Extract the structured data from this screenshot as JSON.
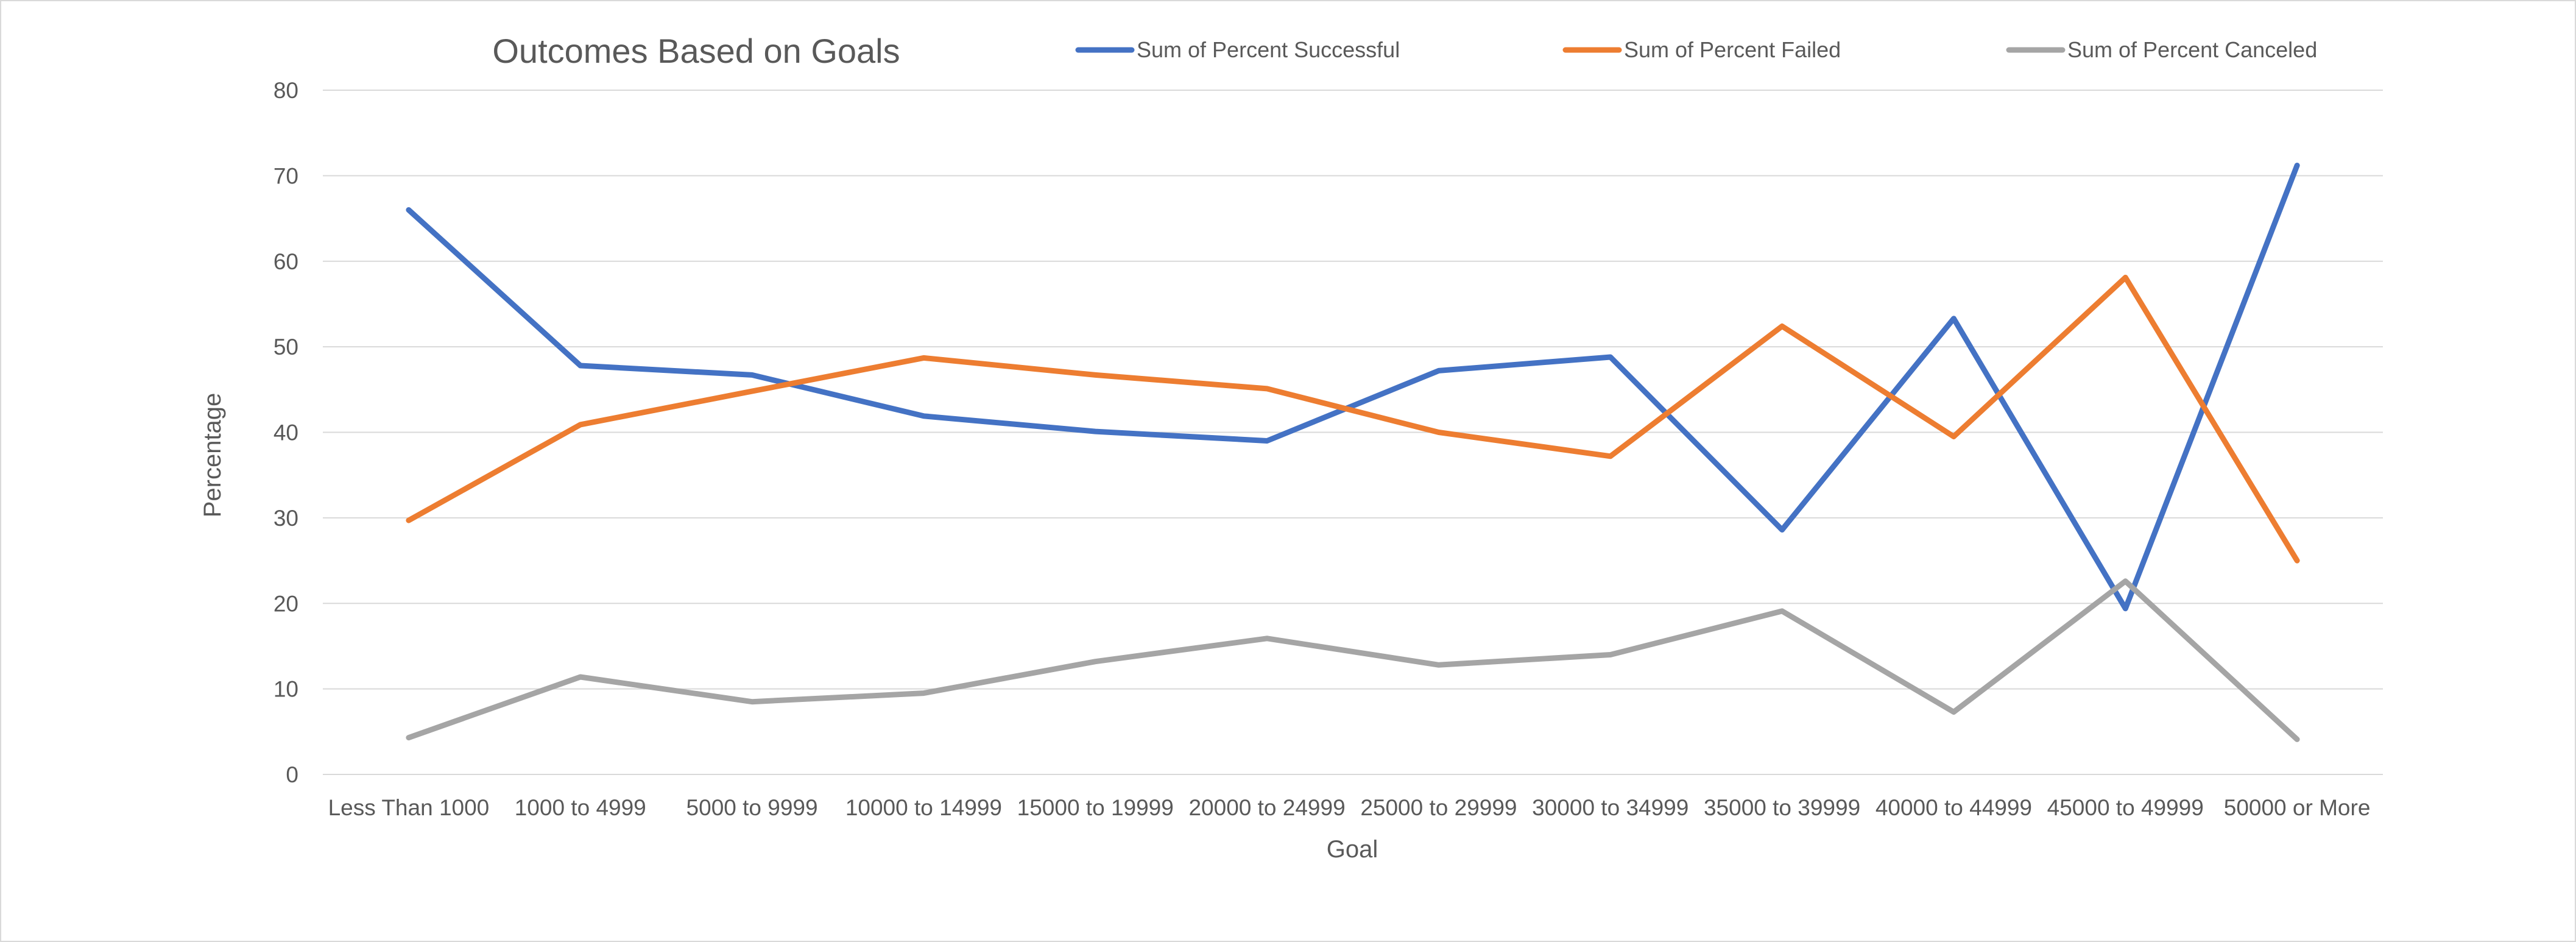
{
  "chart_data": {
    "type": "line",
    "title": "Outcomes Based on Goals",
    "xlabel": "Goal",
    "ylabel": "Percentage",
    "ylim": [
      0,
      80
    ],
    "yticks": [
      0,
      10,
      20,
      30,
      40,
      50,
      60,
      70,
      80
    ],
    "grid": true,
    "legend_position": "top",
    "categories": [
      "Less Than 1000",
      "1000 to 4999",
      "5000 to 9999",
      "10000 to 14999",
      "15000 to 19999",
      "20000 to 24999",
      "25000 to 29999",
      "30000 to 34999",
      "35000 to 39999",
      "40000 to 44999",
      "45000 to 49999",
      "50000 or More"
    ],
    "series": [
      {
        "name": "Sum of Percent Successful",
        "color": "#4472C4",
        "values": [
          66,
          47.8,
          46.7,
          41.9,
          40.1,
          39,
          47.2,
          48.8,
          28.6,
          53.3,
          19.4,
          71.2
        ]
      },
      {
        "name": "Sum of Percent Failed",
        "color": "#ED7D31",
        "values": [
          29.7,
          40.9,
          44.8,
          48.7,
          46.7,
          45.1,
          40,
          37.2,
          52.4,
          39.5,
          58.1,
          25
        ]
      },
      {
        "name": "Sum of Percent Canceled",
        "color": "#A5A5A5",
        "values": [
          4.3,
          11.4,
          8.5,
          9.5,
          13.2,
          15.9,
          12.8,
          14,
          19.1,
          7.3,
          22.6,
          4.1
        ]
      }
    ]
  }
}
